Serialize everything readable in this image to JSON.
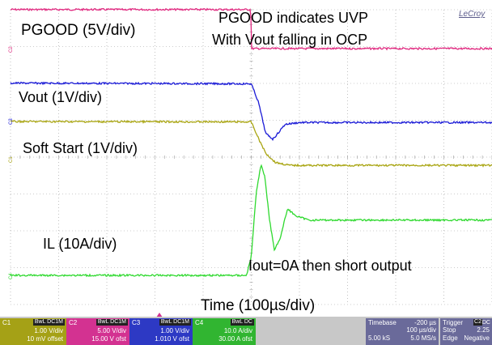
{
  "brand": "LeCroy",
  "annotations": {
    "pgood_label": "PGOOD (5V/div)",
    "uvp_line1": "PGOOD indicates UVP",
    "uvp_line2": "With Vout falling in OCP",
    "vout_label": "Vout (1V/div)",
    "ss_label": "Soft Start (1V/div)",
    "il_label": "IL (10A/div)",
    "iout_label": "Iout=0A then short output",
    "time_label": "Time (100µs/div)"
  },
  "channel_markers": {
    "c1": "C1",
    "c2": "C2",
    "c3": "C3",
    "c4": "C4"
  },
  "colors": {
    "pgood": "#e0287f",
    "vout": "#1a1ad6",
    "soft_start": "#a9a512",
    "il": "#2fd92f",
    "grid": "#9a9a9a",
    "c1_box": "#a5a116",
    "c2_box": "#d33291",
    "c3_box": "#2d39c4",
    "c4_box": "#31b531",
    "status_box": "#6a6a9a"
  },
  "status_bar": {
    "c1": {
      "name": "C1",
      "coupling": "BwL DC1M",
      "line1": "1.00 V/div",
      "line2": "10 mV offset"
    },
    "c2": {
      "name": "C2",
      "coupling": "BwL DC1M",
      "line1": "5.00 V/div",
      "line2": "15.00 V ofst"
    },
    "c3": {
      "name": "C3",
      "coupling": "BwL DC1M",
      "line1": "1.00 V/div",
      "line2": "1.010 V ofst"
    },
    "c4": {
      "name": "C4",
      "coupling": "BwL DC",
      "line1": "10.0 A/div",
      "line2": "30.00 A ofst"
    },
    "timebase": {
      "label": "Timebase",
      "delay": "-200 µs",
      "per_div": "100 µs/div",
      "samples": "5.00 kS",
      "rate": "5.0 MS/s"
    },
    "trigger": {
      "label": "Trigger",
      "source": "C2",
      "coupling": "DC",
      "mode": "Stop",
      "level": "2.25",
      "type": "Edge",
      "slope": "Negative"
    }
  },
  "chart_data": {
    "type": "line",
    "x_unit": "µs",
    "x_range": [
      -500,
      500
    ],
    "x_divisions": 10,
    "y_divisions": 8,
    "event_time": 0,
    "grid": true,
    "series": [
      {
        "name": "PGOOD (5V/div)",
        "unit": "V",
        "scale_per_div": 5,
        "x": [
          -500,
          -1,
          0,
          500
        ],
        "y": [
          5.3,
          5.3,
          0,
          0
        ]
      },
      {
        "name": "Vout (1V/div)",
        "unit": "V",
        "scale_per_div": 1,
        "x": [
          -500,
          0,
          15,
          30,
          45,
          55,
          70,
          100,
          200,
          500
        ],
        "y": [
          1.02,
          1.0,
          0.5,
          -0.35,
          -0.5,
          -0.35,
          -0.1,
          -0.05,
          -0.05,
          -0.05
        ]
      },
      {
        "name": "Soft Start (1V/div)",
        "unit": "V",
        "scale_per_div": 1,
        "x": [
          -500,
          0,
          15,
          30,
          50,
          80,
          500
        ],
        "y": [
          1.01,
          1.0,
          0.55,
          0.15,
          -0.1,
          -0.18,
          -0.18
        ]
      },
      {
        "name": "IL (10A/div)",
        "unit": "A",
        "scale_per_div": 10,
        "x": [
          -500,
          -10,
          0,
          10,
          20,
          28,
          38,
          48,
          60,
          75,
          95,
          120,
          200,
          500
        ],
        "y": [
          0,
          0,
          5,
          22,
          30,
          27,
          15,
          7,
          10,
          18,
          16,
          15,
          15,
          15
        ]
      }
    ]
  }
}
